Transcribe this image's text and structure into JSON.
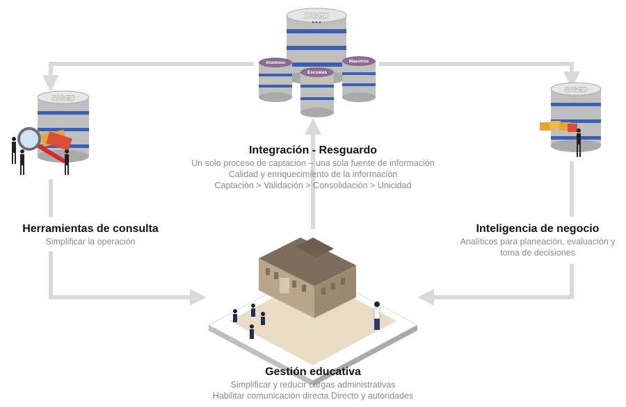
{
  "colors": {
    "arrow": "#d9d9d9",
    "title": "#111111",
    "subtitle": "#8a8a8a",
    "db_top": "#e6e6e6",
    "db_body": "#bfbfbf",
    "db_band": "#3d5fb0",
    "pill": "#8b6b8f",
    "building": "#b8a58a",
    "roof": "#7c6d5c",
    "floor": "#e8dcc4"
  },
  "icons": {
    "central": "database-cluster-icon",
    "left": "database-magnifier-icon",
    "right": "database-folders-icon",
    "bottom": "school-building-icon"
  },
  "databases": {
    "main_label": "SIGED",
    "sub": [
      {
        "label": "Alumnos"
      },
      {
        "label": "Escuelas"
      },
      {
        "label": "Maestros"
      }
    ],
    "left_label": "SIGED",
    "right_label": "SIGED"
  },
  "nodes": {
    "integracion": {
      "title": "Integración - Resguardo",
      "lines": [
        "Un solo proceso de captación – una sola fuente de información",
        "Calidad y enriquecimiento de la información",
        "Captación > Validación > Consolidación > Unicidad"
      ]
    },
    "herramientas": {
      "title": "Herramientas de consulta",
      "lines": [
        "Simplificar la operación"
      ]
    },
    "inteligencia": {
      "title": "Inteligencia de negocio",
      "lines": [
        "Analíticos para planeación, evaluación y",
        "toma de decisiones"
      ]
    },
    "gestion": {
      "title": "Gestión educativa",
      "lines": [
        "Simplificar y reducir cargas administrativas",
        "Habilitar comunicación directa Directo y autoridades"
      ]
    }
  }
}
